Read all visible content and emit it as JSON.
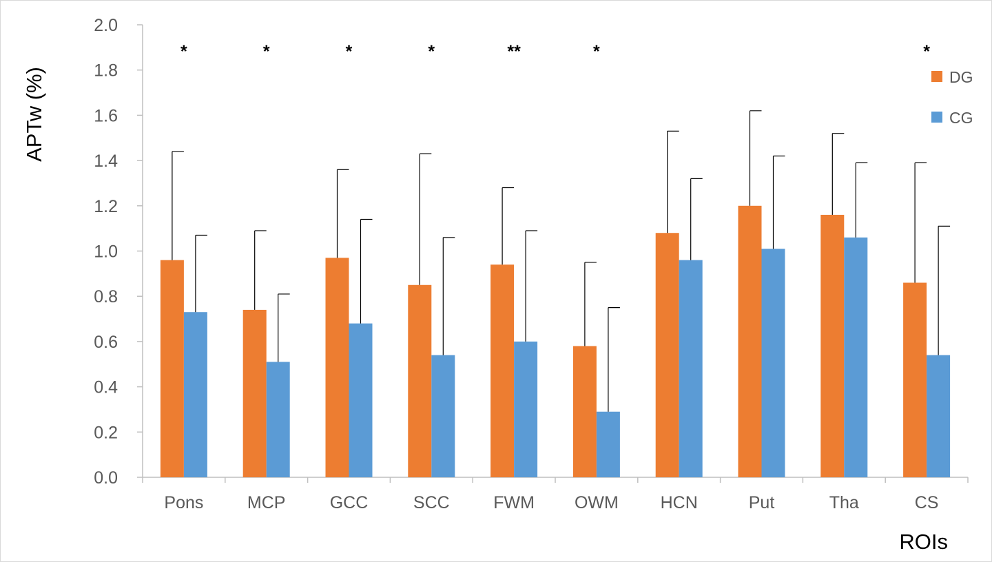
{
  "chart_data": {
    "type": "bar",
    "title": "",
    "ylabel": "APTw (%)",
    "xlabel": "ROIs",
    "ylim": [
      0,
      2.0
    ],
    "yticks": [
      "0.0",
      "0.2",
      "0.4",
      "0.6",
      "0.8",
      "1.0",
      "1.2",
      "1.4",
      "1.6",
      "1.8",
      "2.0"
    ],
    "categories": [
      "Pons",
      "MCP",
      "GCC",
      "SCC",
      "FWM",
      "OWM",
      "HCN",
      "Put",
      "Tha",
      "CS"
    ],
    "series": [
      {
        "name": "DG",
        "color": "#ED7D31",
        "values": [
          0.96,
          0.74,
          0.97,
          0.85,
          0.94,
          0.58,
          1.08,
          1.2,
          1.16,
          0.86
        ],
        "error_upper": [
          1.44,
          1.09,
          1.36,
          1.43,
          1.28,
          0.95,
          1.53,
          1.62,
          1.52,
          1.39
        ]
      },
      {
        "name": "CG",
        "color": "#5B9BD5",
        "values": [
          0.73,
          0.51,
          0.68,
          0.54,
          0.6,
          0.29,
          0.96,
          1.01,
          1.06,
          0.54
        ],
        "error_upper": [
          1.07,
          0.81,
          1.14,
          1.06,
          1.09,
          0.75,
          1.32,
          1.42,
          1.39,
          1.11
        ]
      }
    ],
    "significance": [
      "*",
      "*",
      "*",
      "*",
      "**",
      "*",
      "",
      "",
      "",
      "*"
    ],
    "legend_position": "top-right",
    "grid": false
  }
}
